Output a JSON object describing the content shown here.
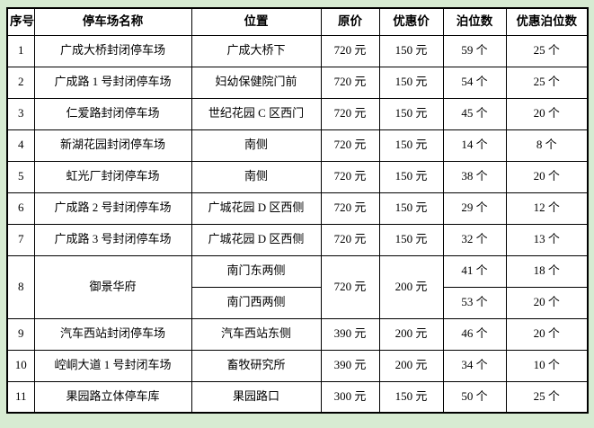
{
  "colors": {
    "background": "#d7ebd2",
    "table_background": "#ffffff",
    "border": "#000000",
    "text": "#000000"
  },
  "table": {
    "columns": [
      "序号",
      "停车场名称",
      "位置",
      "原价",
      "优惠价",
      "泊位数",
      "优惠泊位数"
    ],
    "rows": [
      {
        "no": "1",
        "name": "广成大桥封闭停车场",
        "location": "广成大桥下",
        "original_price": "720 元",
        "discount_price": "150 元",
        "berths": "59 个",
        "discount_berths": "25 个"
      },
      {
        "no": "2",
        "name": "广成路 1 号封闭停车场",
        "location": "妇幼保健院门前",
        "original_price": "720 元",
        "discount_price": "150 元",
        "berths": "54 个",
        "discount_berths": "25 个"
      },
      {
        "no": "3",
        "name": "仁爱路封闭停车场",
        "location": "世纪花园 C 区西门",
        "original_price": "720 元",
        "discount_price": "150 元",
        "berths": "45 个",
        "discount_berths": "20 个"
      },
      {
        "no": "4",
        "name": "新湖花园封闭停车场",
        "location": "南侧",
        "original_price": "720 元",
        "discount_price": "150 元",
        "berths": "14 个",
        "discount_berths": "8 个"
      },
      {
        "no": "5",
        "name": "虹光厂封闭停车场",
        "location": "南侧",
        "original_price": "720 元",
        "discount_price": "150 元",
        "berths": "38 个",
        "discount_berths": "20 个"
      },
      {
        "no": "6",
        "name": "广成路 2 号封闭停车场",
        "location": "广城花园 D 区西侧",
        "original_price": "720 元",
        "discount_price": "150 元",
        "berths": "29 个",
        "discount_berths": "12 个"
      },
      {
        "no": "7",
        "name": "广成路 3 号封闭停车场",
        "location": "广城花园 D 区西侧",
        "original_price": "720 元",
        "discount_price": "150 元",
        "berths": "32 个",
        "discount_berths": "13 个"
      },
      {
        "no": "8",
        "name": "御景华府",
        "original_price": "720 元",
        "discount_price": "200 元",
        "subrows": [
          {
            "location": "南门东两侧",
            "berths": "41 个",
            "discount_berths": "18 个"
          },
          {
            "location": "南门西两侧",
            "berths": "53 个",
            "discount_berths": "20 个"
          }
        ]
      },
      {
        "no": "9",
        "name": "汽车西站封闭停车场",
        "location": "汽车西站东侧",
        "original_price": "390 元",
        "discount_price": "200 元",
        "berths": "46 个",
        "discount_berths": "20 个"
      },
      {
        "no": "10",
        "name": "崆峒大道 1 号封闭车场",
        "location": "畜牧研究所",
        "original_price": "390 元",
        "discount_price": "200 元",
        "berths": "34 个",
        "discount_berths": "10 个"
      },
      {
        "no": "11",
        "name": "果园路立体停车库",
        "location": "果园路口",
        "original_price": "300 元",
        "discount_price": "150 元",
        "berths": "50 个",
        "discount_berths": "25 个"
      }
    ]
  }
}
